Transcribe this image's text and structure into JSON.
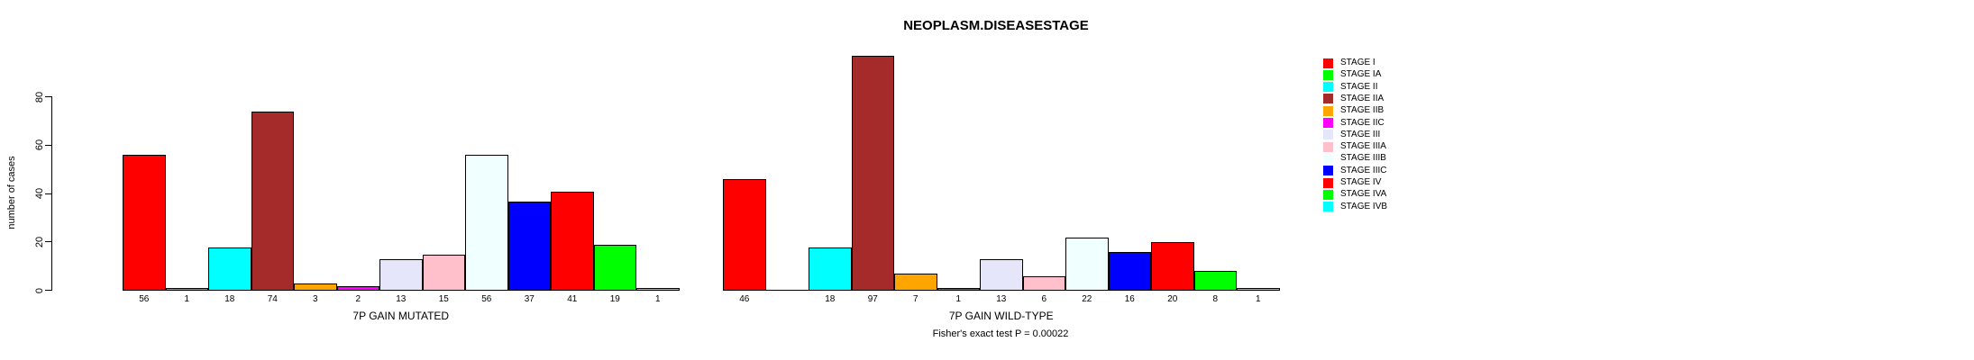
{
  "chart_data": {
    "type": "bar",
    "title": "NEOPLASM.DISEASESTAGE",
    "ylabel": "number of cases",
    "footer": "Fisher's exact test P = 0.00022",
    "yticks": [
      0,
      20,
      40,
      60,
      80
    ],
    "ylim": [
      0,
      100
    ],
    "grid": false,
    "legend_position": "right",
    "categories": [
      "STAGE I",
      "STAGE IA",
      "STAGE II",
      "STAGE IIA",
      "STAGE IIB",
      "STAGE IIC",
      "STAGE III",
      "STAGE IIIA",
      "STAGE IIIB",
      "STAGE IIIC",
      "STAGE IV",
      "STAGE IVA",
      "STAGE IVB"
    ],
    "colors": [
      "#FF0000",
      "#00FF00",
      "#00FFFF",
      "#A52A2A",
      "#FFA500",
      "#FF00FF",
      "#E6E6FA",
      "#FFC0CB",
      "#F0FFFF",
      "#0000FF",
      "#FF0000",
      "#00FF00",
      "#00FFFF"
    ],
    "groups": [
      {
        "label": "7P GAIN MUTATED",
        "values": [
          56,
          1,
          18,
          74,
          3,
          2,
          13,
          15,
          56,
          37,
          41,
          19,
          1
        ]
      },
      {
        "label": "7P GAIN WILD-TYPE",
        "values": [
          46,
          0,
          18,
          97,
          7,
          1,
          13,
          6,
          22,
          16,
          20,
          8,
          1
        ]
      }
    ],
    "legend": [
      {
        "label": "STAGE I",
        "color": "#FF0000"
      },
      {
        "label": "STAGE IA",
        "color": "#00FF00"
      },
      {
        "label": "STAGE II",
        "color": "#00FFFF"
      },
      {
        "label": "STAGE IIA",
        "color": "#A52A2A"
      },
      {
        "label": "STAGE IIB",
        "color": "#FFA500"
      },
      {
        "label": "STAGE IIC",
        "color": "#FF00FF"
      },
      {
        "label": "STAGE III",
        "color": "#E6E6FA"
      },
      {
        "label": "STAGE IIIA",
        "color": "#FFC0CB"
      },
      {
        "label": "STAGE IIIB",
        "color": "#F0FFFF"
      },
      {
        "label": "STAGE IIIC",
        "color": "#0000FF"
      },
      {
        "label": "STAGE IV",
        "color": "#FF0000"
      },
      {
        "label": "STAGE IVA",
        "color": "#00FF00"
      },
      {
        "label": "STAGE IVB",
        "color": "#00FFFF"
      }
    ]
  }
}
